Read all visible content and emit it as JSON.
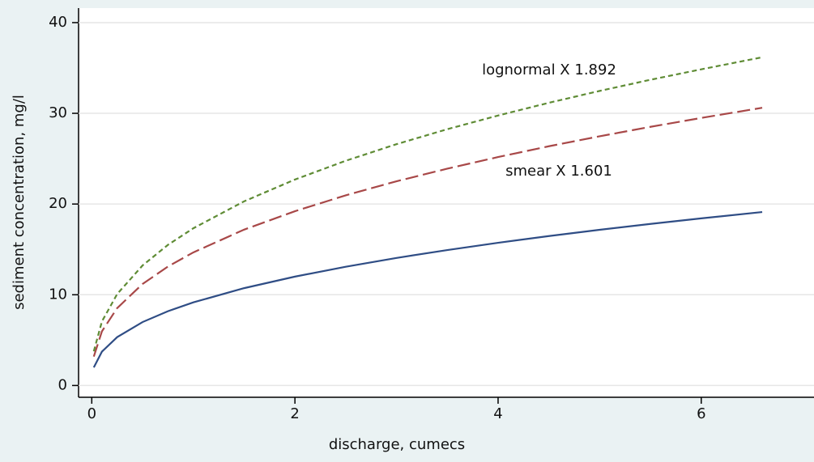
{
  "chart_data": {
    "type": "line",
    "x_label": "discharge, cumecs",
    "y_label": "sediment concentration, mg/l",
    "annotations": [
      "lognormal X 1.892",
      "smear X 1.601"
    ],
    "x": [
      0.02,
      0.1,
      0.25,
      0.5,
      0.75,
      1,
      1.5,
      2,
      2.5,
      3,
      3.5,
      4,
      4.5,
      5,
      5.5,
      6,
      6.6
    ],
    "series": [
      {
        "color": "#2f4d85",
        "dash": "solid",
        "values": [
          1.99,
          3.73,
          5.33,
          6.99,
          8.19,
          9.16,
          10.73,
          12.0,
          13.09,
          14.06,
          14.93,
          15.73,
          16.47,
          17.16,
          17.81,
          18.42,
          19.12
        ]
      },
      {
        "color": "#a84848",
        "dash": "long",
        "values": [
          3.19,
          5.97,
          8.53,
          11.19,
          13.11,
          14.67,
          17.18,
          19.21,
          20.96,
          22.51,
          23.9,
          25.18,
          26.37,
          27.47,
          28.51,
          29.49,
          30.61
        ]
      },
      {
        "color": "#5f8c35",
        "dash": "short",
        "values": [
          3.77,
          7.06,
          10.08,
          13.23,
          15.5,
          17.33,
          20.3,
          22.7,
          24.77,
          26.6,
          28.25,
          29.76,
          31.16,
          32.47,
          33.7,
          34.85,
          36.18
        ]
      }
    ],
    "xlim": [
      -0.13,
      7.11
    ],
    "ylim": [
      -1.3,
      41.6
    ],
    "xticks": [
      0,
      2,
      4,
      6
    ],
    "yticks": [
      0,
      10,
      20,
      30,
      40
    ],
    "grid": true
  }
}
